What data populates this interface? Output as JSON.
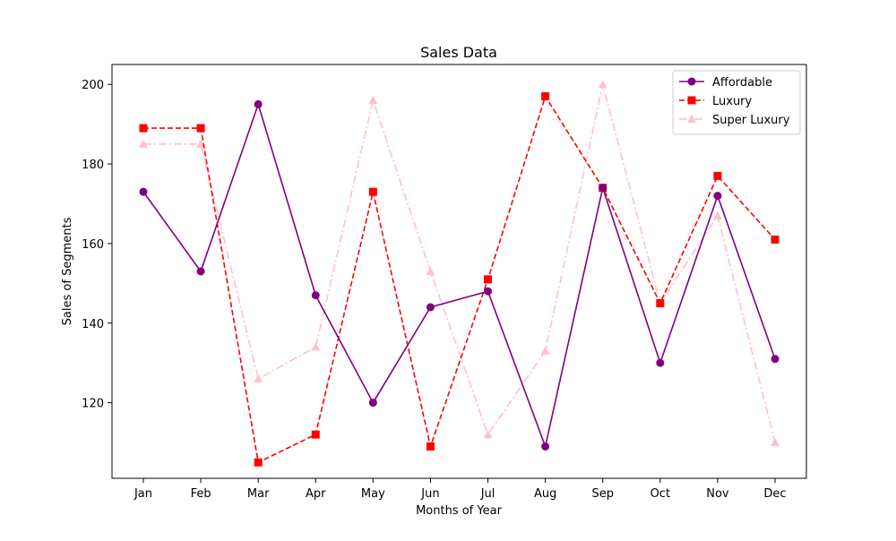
{
  "chart_data": {
    "type": "line",
    "title": "Sales Data",
    "xlabel": "Months of Year",
    "ylabel": "Sales of Segments",
    "categories": [
      "Jan",
      "Feb",
      "Mar",
      "Apr",
      "May",
      "Jun",
      "Jul",
      "Aug",
      "Sep",
      "Oct",
      "Nov",
      "Dec"
    ],
    "ylim": [
      101,
      205
    ],
    "yticks": [
      120,
      140,
      160,
      180,
      200
    ],
    "grid": false,
    "legend_position": "top-right",
    "series": [
      {
        "name": "Affordable",
        "values": [
          173,
          153,
          195,
          147,
          120,
          144,
          148,
          109,
          174,
          130,
          172,
          131
        ],
        "color": "#800080",
        "line_style": "solid",
        "marker": "circle"
      },
      {
        "name": "Luxury",
        "values": [
          189,
          189,
          105,
          112,
          173,
          109,
          151,
          197,
          174,
          145,
          177,
          161
        ],
        "color": "#ff0000",
        "line_style": "dashed",
        "marker": "square"
      },
      {
        "name": "Super Luxury",
        "values": [
          185,
          185,
          126,
          134,
          196,
          153,
          112,
          133,
          200,
          145,
          167,
          110
        ],
        "color": "#ffc0cb",
        "line_style": "dashdot",
        "marker": "triangle"
      }
    ]
  }
}
